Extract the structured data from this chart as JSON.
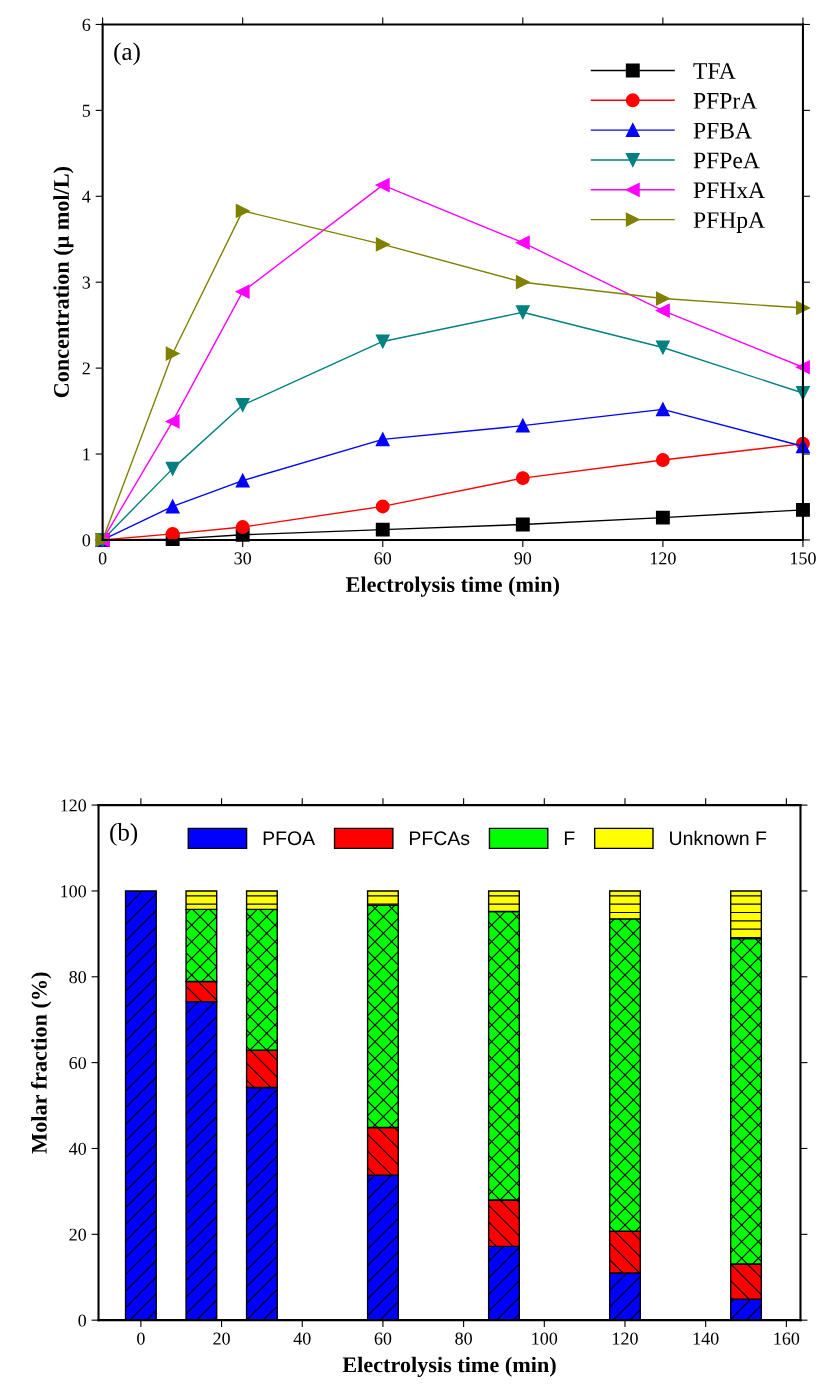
{
  "chart_data": [
    {
      "type": "line",
      "xlabel": "Electrolysis time (min)",
      "ylabel": "Concentration (μ mol/L)",
      "annotations": [
        "(a)"
      ],
      "x": [
        0,
        15,
        30,
        60,
        90,
        120,
        150
      ],
      "xlim": [
        0,
        150
      ],
      "xticks": [
        0,
        30,
        60,
        90,
        120,
        150
      ],
      "ylim": [
        0,
        6
      ],
      "yticks": [
        0,
        1,
        2,
        3,
        4,
        5,
        6
      ],
      "legend": "top right",
      "grid": false,
      "series": [
        {
          "name": "TFA",
          "color": "#000000",
          "marker": "square",
          "values": [
            0,
            0.01,
            0.06,
            0.12,
            0.18,
            0.26,
            0.35
          ]
        },
        {
          "name": "PFPrA",
          "color": "#ff0000",
          "marker": "circle",
          "values": [
            0,
            0.07,
            0.15,
            0.39,
            0.72,
            0.93,
            1.12
          ]
        },
        {
          "name": "PFBA",
          "color": "#0000ff",
          "marker": "triangle",
          "values": [
            0,
            0.39,
            0.69,
            1.17,
            1.33,
            1.52,
            1.09
          ]
        },
        {
          "name": "PFPeA",
          "color": "#008080",
          "marker": "triangle_down",
          "values": [
            0,
            0.83,
            1.57,
            2.31,
            2.65,
            2.24,
            1.71
          ]
        },
        {
          "name": "PFHxA",
          "color": "#ff00ff",
          "marker": "triangle_left",
          "values": [
            0,
            1.38,
            2.89,
            4.13,
            3.46,
            2.67,
            2.01
          ]
        },
        {
          "name": "PFHpA",
          "color": "#808000",
          "marker": "triangle_right",
          "values": [
            0,
            2.17,
            3.83,
            3.44,
            3.0,
            2.81,
            2.7
          ]
        }
      ]
    },
    {
      "type": "bar",
      "stacked": true,
      "xlabel": "Electrolysis time (min)",
      "ylabel": "Molar fraction (%)",
      "annotations": [
        "(b)"
      ],
      "x": [
        0,
        15,
        30,
        60,
        90,
        120,
        150
      ],
      "xlim": [
        -10.5,
        163.5
      ],
      "xticks": [
        0,
        20,
        40,
        60,
        80,
        100,
        120,
        140,
        160
      ],
      "ylim": [
        0,
        120
      ],
      "yticks": [
        0,
        20,
        40,
        60,
        80,
        100,
        120
      ],
      "legend": "top",
      "grid": false,
      "series": [
        {
          "name": "PFOA",
          "color": "#0000ff",
          "values": [
            100,
            74.2,
            54.2,
            33.8,
            17.2,
            11.0,
            4.9
          ]
        },
        {
          "name": "PFCAs",
          "color": "#ff0000",
          "values": [
            null,
            4.7,
            8.7,
            11.1,
            10.8,
            9.7,
            8.2
          ]
        },
        {
          "name": "F",
          "color": "#00ff00",
          "values": [
            null,
            16.8,
            32.8,
            51.8,
            67.2,
            72.8,
            75.8
          ]
        },
        {
          "name": "Unknown F",
          "color": "#ffff00",
          "values": [
            null,
            4.3,
            4.3,
            3.3,
            4.8,
            6.5,
            11.1
          ]
        }
      ]
    }
  ]
}
